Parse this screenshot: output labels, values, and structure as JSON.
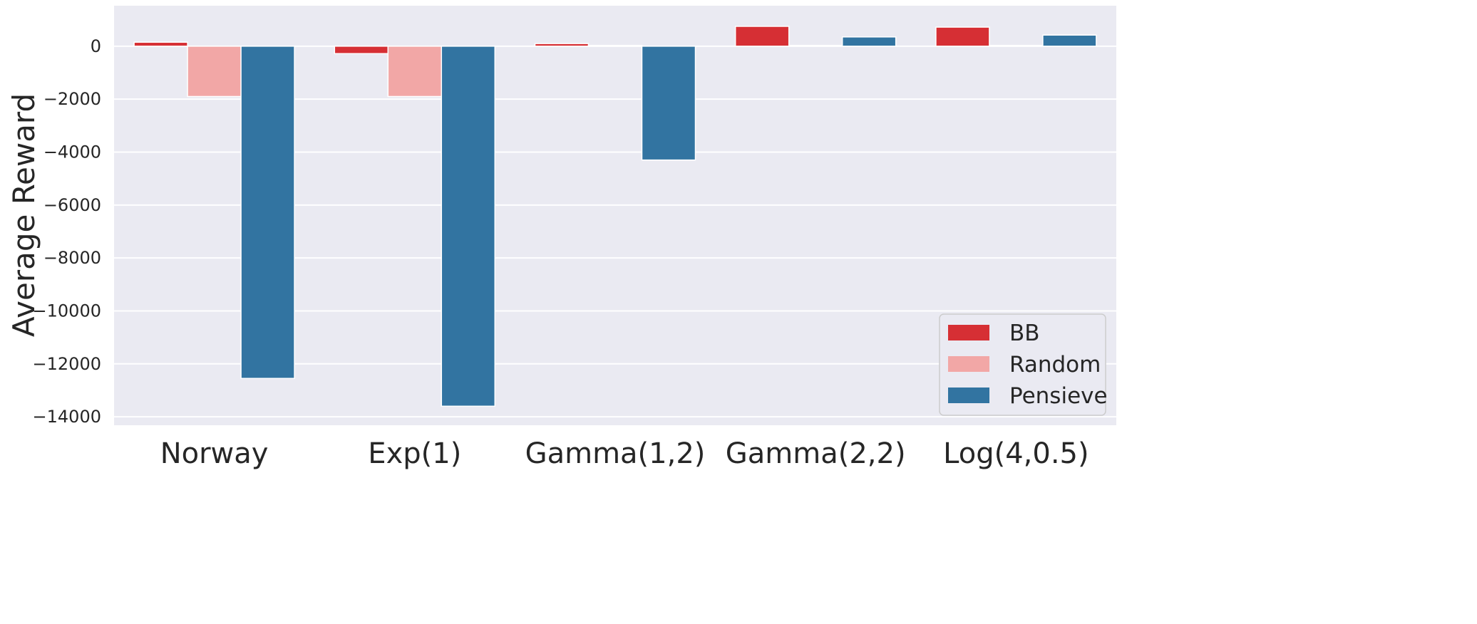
{
  "chart_data": {
    "type": "bar",
    "ylabel": "Average Reward",
    "xlabel": "",
    "categories": [
      "Norway",
      "Exp(1)",
      "Gamma(1,2)",
      "Gamma(2,2)",
      "Log(4,0.5)"
    ],
    "series": [
      {
        "name": "BB",
        "color": "#d62f34",
        "values": [
          150,
          -280,
          100,
          750,
          720
        ]
      },
      {
        "name": "Random",
        "color": "#f2a7a6",
        "values": [
          -1900,
          -1900,
          30,
          30,
          30
        ]
      },
      {
        "name": "Pensieve",
        "color": "#3274a1",
        "values": [
          -12550,
          -13600,
          -4300,
          350,
          420
        ]
      }
    ],
    "yticks": [
      0,
      -2000,
      -4000,
      -6000,
      -8000,
      -10000,
      -12000,
      -14000
    ],
    "ytick_labels": [
      "0",
      "−2000",
      "−4000",
      "−6000",
      "−8000",
      "−10000",
      "−12000",
      "−14000"
    ],
    "ylim": [
      -14320,
      1530
    ],
    "grid": true,
    "legend_position": "bottom-right"
  }
}
